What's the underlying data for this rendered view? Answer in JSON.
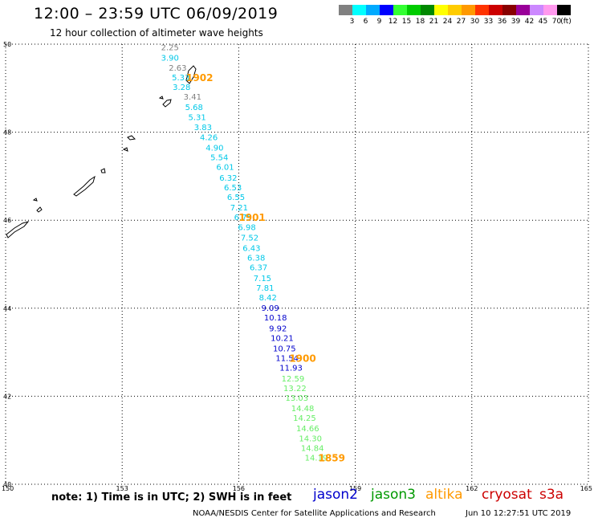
{
  "header": {
    "title": "12:00 – 23:59 UTC 06/09/2019",
    "subtitle": "12 hour collection of altimeter wave heights"
  },
  "legend": {
    "unit": "(ft)",
    "bins": [
      {
        "color": "#808080",
        "tick": "3"
      },
      {
        "color": "#00ffff",
        "tick": "6"
      },
      {
        "color": "#00aaff",
        "tick": "9"
      },
      {
        "color": "#0000ff",
        "tick": "12"
      },
      {
        "color": "#33ff33",
        "tick": "15"
      },
      {
        "color": "#00cc00",
        "tick": "18"
      },
      {
        "color": "#008800",
        "tick": "21"
      },
      {
        "color": "#ffff00",
        "tick": "24"
      },
      {
        "color": "#ffcc00",
        "tick": "27"
      },
      {
        "color": "#ff9900",
        "tick": "30"
      },
      {
        "color": "#ff3300",
        "tick": "33"
      },
      {
        "color": "#cc0000",
        "tick": "36"
      },
      {
        "color": "#880000",
        "tick": "39"
      },
      {
        "color": "#990099",
        "tick": "42"
      },
      {
        "color": "#cc88ff",
        "tick": "45"
      },
      {
        "color": "#ff99ee",
        "tick": "70"
      },
      {
        "color": "#000000",
        "tick": ""
      }
    ]
  },
  "map": {
    "lon_range": [
      150,
      165
    ],
    "lat_range": [
      40,
      50
    ],
    "lon_labels": [
      "150",
      "153",
      "156",
      "159",
      "162",
      "165"
    ],
    "lat_labels": [
      "50",
      "48",
      "46",
      "44",
      "42",
      "40"
    ],
    "grid": "dotted",
    "color_grey": "#808080",
    "color_cyan": "#00c8e8",
    "color_blue": "#0000cc",
    "color_green": "#66ee66",
    "color_time": "#ff9a00",
    "track": [
      {
        "lon": 154.0,
        "lat": 49.86,
        "v": "2.25",
        "c": "grey"
      },
      {
        "lon": 154.0,
        "lat": 49.63,
        "v": "3.90",
        "c": "cyan"
      },
      {
        "lon": 154.2,
        "lat": 49.4,
        "v": "2.63",
        "c": "grey"
      },
      {
        "lon": 154.28,
        "lat": 49.18,
        "v": "5.33",
        "c": "cyan"
      },
      {
        "lon": 154.3,
        "lat": 48.96,
        "v": "3.28",
        "c": "cyan"
      },
      {
        "lon": 154.58,
        "lat": 48.74,
        "v": "3.41",
        "c": "grey"
      },
      {
        "lon": 154.62,
        "lat": 48.5,
        "v": "5.68",
        "c": "cyan"
      },
      {
        "lon": 154.7,
        "lat": 48.28,
        "v": "5.31",
        "c": "cyan"
      },
      {
        "lon": 154.85,
        "lat": 48.05,
        "v": "3.83",
        "c": "cyan"
      },
      {
        "lon": 155.0,
        "lat": 47.82,
        "v": "4.26",
        "c": "cyan"
      },
      {
        "lon": 155.15,
        "lat": 47.58,
        "v": "4.90",
        "c": "cyan"
      },
      {
        "lon": 155.27,
        "lat": 47.36,
        "v": "5.54",
        "c": "cyan"
      },
      {
        "lon": 155.42,
        "lat": 47.14,
        "v": "6.01",
        "c": "cyan"
      },
      {
        "lon": 155.5,
        "lat": 46.9,
        "v": "6.32",
        "c": "cyan"
      },
      {
        "lon": 155.62,
        "lat": 46.68,
        "v": "6.53",
        "c": "cyan"
      },
      {
        "lon": 155.7,
        "lat": 46.46,
        "v": "6.55",
        "c": "cyan"
      },
      {
        "lon": 155.78,
        "lat": 46.22,
        "v": "7.21",
        "c": "cyan"
      },
      {
        "lon": 155.88,
        "lat": 46.0,
        "v": "6.75",
        "c": "cyan"
      },
      {
        "lon": 155.98,
        "lat": 45.78,
        "v": "6.98",
        "c": "cyan"
      },
      {
        "lon": 156.05,
        "lat": 45.54,
        "v": "7.52",
        "c": "cyan"
      },
      {
        "lon": 156.1,
        "lat": 45.3,
        "v": "6.43",
        "c": "cyan"
      },
      {
        "lon": 156.22,
        "lat": 45.08,
        "v": "6.38",
        "c": "cyan"
      },
      {
        "lon": 156.28,
        "lat": 44.86,
        "v": "6.37",
        "c": "cyan"
      },
      {
        "lon": 156.38,
        "lat": 44.62,
        "v": "7.15",
        "c": "cyan"
      },
      {
        "lon": 156.45,
        "lat": 44.4,
        "v": "7.81",
        "c": "cyan"
      },
      {
        "lon": 156.52,
        "lat": 44.18,
        "v": "8.42",
        "c": "cyan"
      },
      {
        "lon": 156.58,
        "lat": 43.94,
        "v": "9.09",
        "c": "blue"
      },
      {
        "lon": 156.65,
        "lat": 43.72,
        "v": "10.18",
        "c": "blue"
      },
      {
        "lon": 156.78,
        "lat": 43.48,
        "v": "9.92",
        "c": "blue"
      },
      {
        "lon": 156.82,
        "lat": 43.26,
        "v": "10.21",
        "c": "blue"
      },
      {
        "lon": 156.88,
        "lat": 43.02,
        "v": "10.75",
        "c": "blue"
      },
      {
        "lon": 156.95,
        "lat": 42.8,
        "v": "11.54",
        "c": "blue"
      },
      {
        "lon": 157.05,
        "lat": 42.58,
        "v": "11.93",
        "c": "blue"
      },
      {
        "lon": 157.1,
        "lat": 42.34,
        "v": "12.59",
        "c": "green"
      },
      {
        "lon": 157.15,
        "lat": 42.12,
        "v": "13.22",
        "c": "green"
      },
      {
        "lon": 157.2,
        "lat": 41.9,
        "v": "13.03",
        "c": "green"
      },
      {
        "lon": 157.35,
        "lat": 41.66,
        "v": "14.48",
        "c": "green"
      },
      {
        "lon": 157.4,
        "lat": 41.44,
        "v": "14.25",
        "c": "green"
      },
      {
        "lon": 157.48,
        "lat": 41.2,
        "v": "14.66",
        "c": "green"
      },
      {
        "lon": 157.55,
        "lat": 40.98,
        "v": "14.30",
        "c": "green"
      },
      {
        "lon": 157.6,
        "lat": 40.76,
        "v": "14.84",
        "c": "green"
      },
      {
        "lon": 157.7,
        "lat": 40.54,
        "v": "14.19",
        "c": "green"
      }
    ],
    "times": [
      {
        "lon": 154.65,
        "lat": 49.18,
        "label": "1902"
      },
      {
        "lon": 156.0,
        "lat": 46.0,
        "label": "1901"
      },
      {
        "lon": 157.3,
        "lat": 42.8,
        "label": "1900"
      },
      {
        "lon": 158.05,
        "lat": 40.54,
        "label": "1859"
      }
    ]
  },
  "footer": {
    "note": "note:  1) Time is in UTC;  2) SWH is in feet",
    "satellites": [
      {
        "name": "jason2",
        "color": "#0000cc"
      },
      {
        "name": "jason3",
        "color": "#009900"
      },
      {
        "name": "altika",
        "color": "#ff9900"
      },
      {
        "name": "cryosat",
        "color": "#cc0000"
      },
      {
        "name": "s3a",
        "color": "#cc0000"
      }
    ],
    "credit": "NOAA/NESDIS Center for Satellite Applications and Research",
    "timestamp": "Jun 10 12:27:51 UTC 2019"
  }
}
